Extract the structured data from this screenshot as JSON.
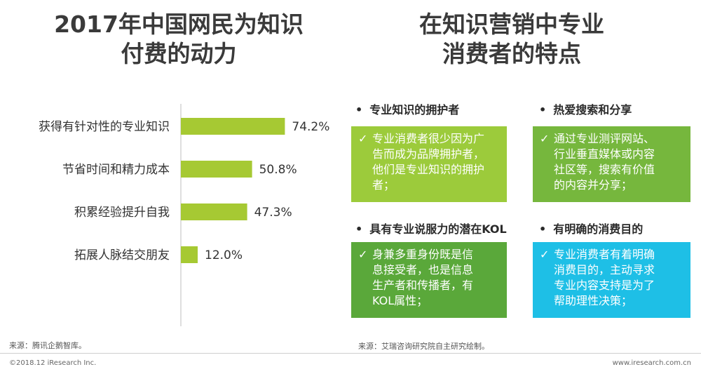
{
  "left_panel": {
    "title_line1": "2017年中国网民为知识",
    "title_line2": "付费的动力",
    "source": "来源：腾讯企鹅智库。"
  },
  "chart_data": {
    "type": "bar",
    "orientation": "horizontal",
    "categories": [
      "获得有针对性的专业知识",
      "节省时间和精力成本",
      "积累经验提升自我",
      "拓展人脉结交朋友"
    ],
    "values": [
      74.2,
      50.8,
      47.3,
      12.0
    ],
    "value_labels": [
      "74.2%",
      "50.8%",
      "47.3%",
      "12.0%"
    ],
    "unit": "%",
    "xlim": [
      0,
      100
    ],
    "bar_color": "#a6c933",
    "grid": false
  },
  "right_panel": {
    "title_line1": "在知识营销中专业",
    "title_line2": "消费者的特点",
    "bullet": "•",
    "check": "✓",
    "points": [
      {
        "title": "专业知识的拥护者",
        "lines": [
          "专业消费者很少因为广",
          "告而成为品牌拥护者，",
          "他们是专业知识的拥护",
          "者；"
        ],
        "color": "#9ccb3b"
      },
      {
        "title": "热爱搜索和分享",
        "lines": [
          "通过专业测评网站、",
          "行业垂直媒体或内容",
          "社区等，搜索有价值",
          "的内容并分享；"
        ],
        "color": "#76b73d"
      },
      {
        "title": "具有专业说服力的潜在KOL",
        "lines": [
          "身兼多重身份既是信",
          "息接受者，也是信息",
          "生产者和传播者，有",
          "KOL属性；"
        ],
        "color": "#5aa83a"
      },
      {
        "title": "有明确的消费目的",
        "lines": [
          "专业消费者有着明确",
          "消费目的，主动寻求",
          "专业内容支持是为了",
          "帮助理性决策；"
        ],
        "color": "#1ebfe6"
      }
    ],
    "source": "来源：艾瑞咨询研究院自主研究绘制。"
  },
  "footer": {
    "copyright": "©2018.12 iResearch Inc.",
    "site": "www.iresearch.com.cn"
  }
}
